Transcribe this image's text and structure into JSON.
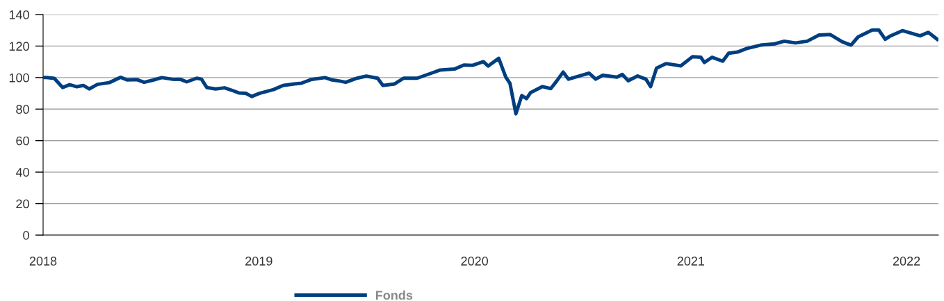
{
  "chart_data": {
    "type": "line",
    "x": [
      "2018-01-02",
      "2018-01-07",
      "2018-01-20",
      "2018-02-03",
      "2018-02-15",
      "2018-02-27",
      "2018-03-10",
      "2018-03-20",
      "2018-04-03",
      "2018-04-23",
      "2018-05-12",
      "2018-05-23",
      "2018-06-09",
      "2018-06-21",
      "2018-07-06",
      "2018-07-21",
      "2018-08-07",
      "2018-08-22",
      "2018-09-01",
      "2018-09-18",
      "2018-09-26",
      "2018-10-05",
      "2018-10-20",
      "2018-11-04",
      "2018-11-16",
      "2018-11-28",
      "2018-12-10",
      "2018-12-20",
      "2019-01-02",
      "2019-01-26",
      "2019-02-11",
      "2019-03-02",
      "2019-03-14",
      "2019-03-30",
      "2019-04-23",
      "2019-05-05",
      "2019-05-18",
      "2019-05-28",
      "2019-06-16",
      "2019-07-02",
      "2019-07-21",
      "2019-07-30",
      "2019-08-19",
      "2019-09-03",
      "2019-09-26",
      "2019-10-20",
      "2019-11-04",
      "2019-11-28",
      "2019-12-14",
      "2019-12-29",
      "2020-01-16",
      "2020-01-24",
      "2020-02-11",
      "2020-02-23",
      "2020-03-01",
      "2020-03-11",
      "2020-03-21",
      "2020-03-29",
      "2020-04-05",
      "2020-04-25",
      "2020-05-09",
      "2020-05-19",
      "2020-05-30",
      "2020-06-08",
      "2020-06-26",
      "2020-07-13",
      "2020-07-24",
      "2020-08-05",
      "2020-08-29",
      "2020-09-07",
      "2020-09-17",
      "2020-10-03",
      "2020-10-17",
      "2020-10-25",
      "2020-11-04",
      "2020-11-20",
      "2020-12-15",
      "2021-01-04",
      "2021-01-18",
      "2021-01-24",
      "2021-02-06",
      "2021-02-24",
      "2021-03-06",
      "2021-03-21",
      "2021-04-05",
      "2021-04-29",
      "2021-05-23",
      "2021-06-08",
      "2021-06-27",
      "2021-07-17",
      "2021-08-06",
      "2021-08-25",
      "2021-09-14",
      "2021-09-29",
      "2021-10-11",
      "2021-11-04",
      "2021-11-15",
      "2021-11-26",
      "2021-12-05",
      "2021-12-25",
      "2022-01-24",
      "2022-02-07",
      "2022-02-22"
    ],
    "series": [
      {
        "name": "Fonds",
        "color": "#003f7f",
        "values": [
          100,
          100,
          99.5,
          93.7,
          95.5,
          94.2,
          95,
          92.8,
          95.7,
          96.8,
          100.2,
          98.5,
          98.7,
          97,
          98.4,
          100,
          99,
          98.8,
          97.3,
          99.6,
          99,
          93.7,
          92.8,
          93.5,
          92,
          90.3,
          90,
          88,
          90,
          92.4,
          95,
          96,
          96.4,
          98.7,
          100,
          98.5,
          97.8,
          97,
          99.6,
          100.9,
          99.6,
          95,
          96,
          99.6,
          99.6,
          102.8,
          104.8,
          105.4,
          108,
          107.8,
          110.1,
          107.3,
          112.2,
          100.2,
          96.3,
          77,
          88.6,
          86.7,
          90.5,
          94.3,
          93,
          97.8,
          103.5,
          99,
          101,
          102.8,
          99,
          101.5,
          100.3,
          102,
          98,
          101,
          99,
          94.3,
          106,
          108.9,
          107.4,
          113.3,
          112.9,
          109.6,
          112.9,
          110.4,
          115.5,
          116.2,
          118.4,
          120.6,
          121.4,
          123.1,
          122,
          123.1,
          127,
          127.3,
          122.8,
          120.6,
          125.8,
          130.2,
          130.2,
          124.3,
          126.5,
          129.8,
          126.5,
          128.7,
          124.3
        ]
      }
    ],
    "xlim": [
      "2018-01-01",
      "2022-02-24"
    ],
    "xticks": [
      {
        "value": "2018-01-01",
        "label": "2018"
      },
      {
        "value": "2019-01-01",
        "label": "2019"
      },
      {
        "value": "2020-01-01",
        "label": "2020"
      },
      {
        "value": "2021-01-01",
        "label": "2021"
      },
      {
        "value": "2022-01-01",
        "label": "2022"
      }
    ],
    "ylim": [
      0,
      140
    ],
    "yticks": [
      0,
      20,
      40,
      60,
      80,
      100,
      120,
      140
    ],
    "grid": "y",
    "legend": "bottom",
    "marker": "none",
    "line_style": "solid"
  }
}
